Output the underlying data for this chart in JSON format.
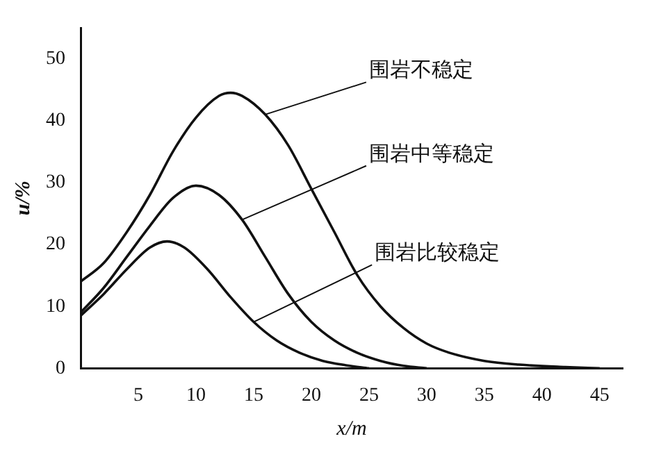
{
  "chart_data": {
    "type": "line",
    "xlabel": "x/m",
    "ylabel": "u/%",
    "xlim": [
      0,
      47
    ],
    "ylim": [
      0,
      55
    ],
    "xticks": [
      5,
      10,
      15,
      20,
      25,
      30,
      35,
      40,
      45
    ],
    "yticks": [
      0,
      10,
      20,
      30,
      40,
      50
    ],
    "grid": false,
    "legend": false,
    "series": [
      {
        "name": "围岩不稳定",
        "color": "#111111",
        "x": [
          0,
          2,
          4,
          6,
          8,
          10,
          12,
          13,
          14,
          16,
          18,
          20,
          22,
          24,
          26,
          28,
          30,
          32,
          35,
          38,
          42,
          45
        ],
        "values": [
          14,
          17,
          22,
          28,
          35,
          40.5,
          44,
          44.5,
          44,
          41,
          36,
          29,
          22,
          15,
          10,
          6.5,
          4,
          2.5,
          1.2,
          0.6,
          0.2,
          0
        ]
      },
      {
        "name": "围岩中等稳定",
        "color": "#111111",
        "x": [
          0,
          2,
          4,
          6,
          8,
          10,
          12,
          14,
          16,
          18,
          20,
          22,
          24,
          26,
          28,
          30
        ],
        "values": [
          9,
          13,
          18,
          23,
          27.5,
          29.5,
          28,
          24,
          18,
          12,
          7.5,
          4.5,
          2.5,
          1.2,
          0.4,
          0
        ]
      },
      {
        "name": "围岩比较稳定",
        "color": "#111111",
        "x": [
          0,
          2,
          4,
          6,
          7.5,
          9,
          11,
          13,
          15,
          17,
          19,
          21,
          23,
          25
        ],
        "values": [
          8.5,
          12,
          16,
          19.5,
          20.5,
          19.5,
          16,
          11.5,
          7.5,
          4.5,
          2.5,
          1.2,
          0.5,
          0
        ]
      }
    ]
  }
}
